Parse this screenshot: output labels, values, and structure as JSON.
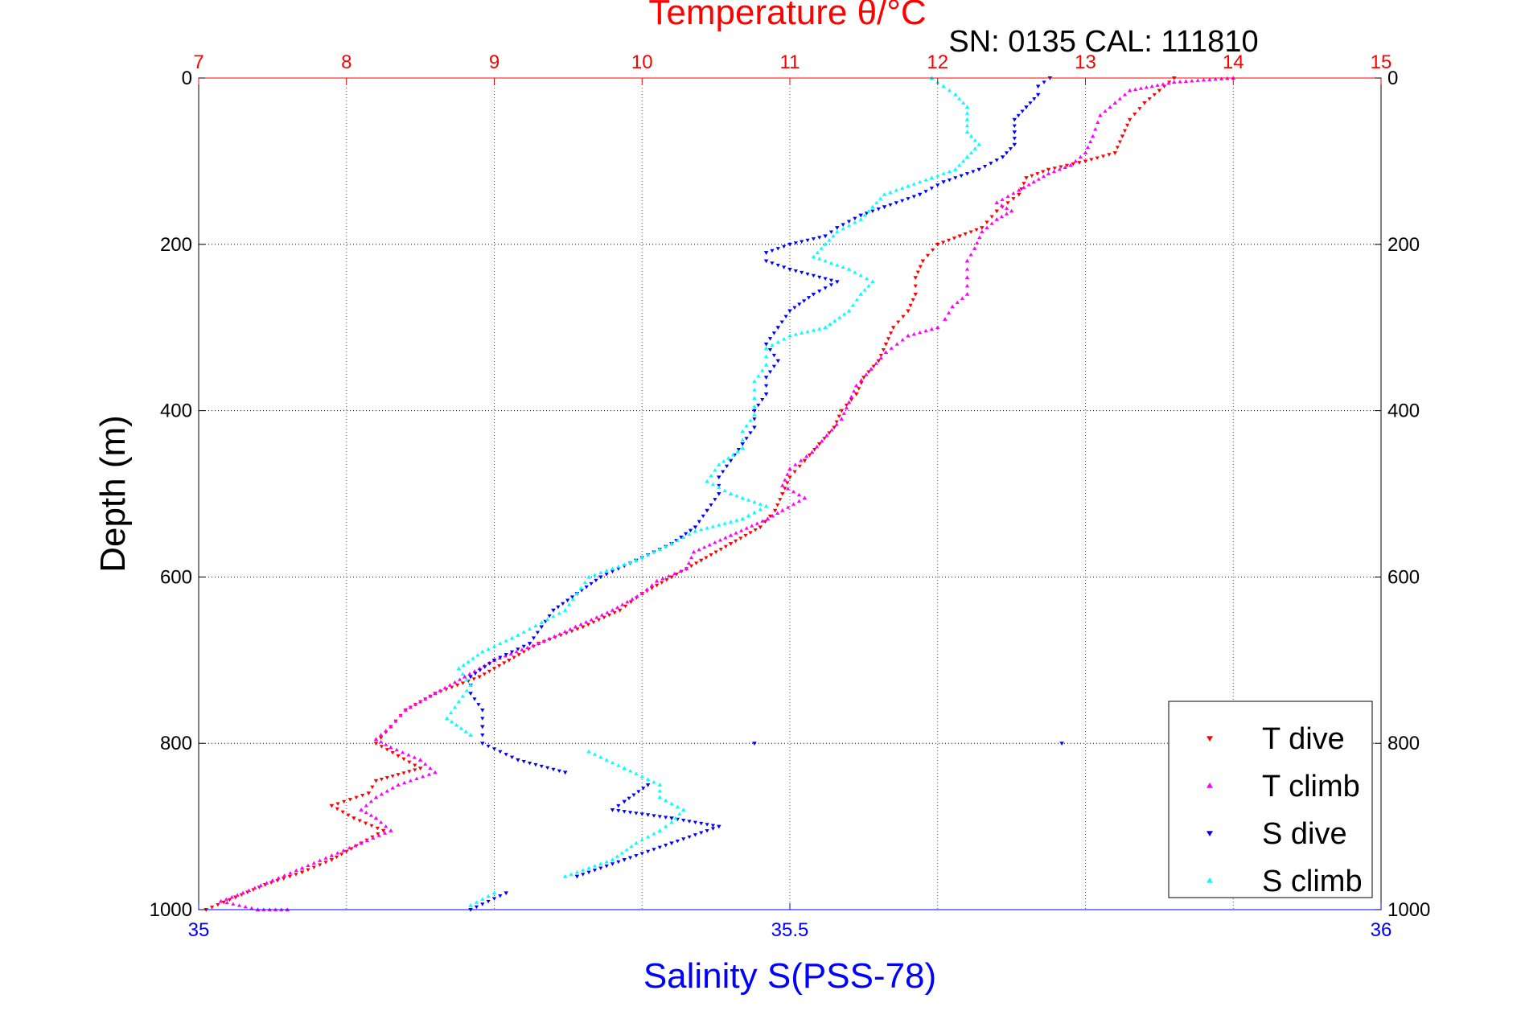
{
  "chart_data": {
    "type": "scatter",
    "title": "Temperature θ/°C",
    "subtitle": "SN: 0135  CAL: 111810",
    "xlabel": "Salinity S(PSS-78)",
    "ylabel": "Depth (m)",
    "top_axis": {
      "label": "Temperature θ/°C",
      "range": [
        7,
        15
      ],
      "ticks": [
        "7",
        "8",
        "9",
        "10",
        "11",
        "12",
        "13",
        "14",
        "15"
      ],
      "color": "#ff0000",
      "grid": true
    },
    "bottom_axis": {
      "label": "Salinity S(PSS-78)",
      "range": [
        35,
        36
      ],
      "ticks": [
        "35",
        "35.5",
        "36"
      ],
      "color": "#0000ff"
    },
    "y_axis": {
      "label": "Depth (m)",
      "range": [
        0,
        1000
      ],
      "reversed": true,
      "ticks": [
        "0",
        "200",
        "400",
        "600",
        "800",
        "1000"
      ],
      "grid": true
    },
    "legend_position": "bottom-right",
    "series": [
      {
        "name": "T dive",
        "axis": "temperature",
        "color": "#ff0000",
        "marker": "triangle-down",
        "points": [
          [
            13.6,
            0
          ],
          [
            13.5,
            15
          ],
          [
            13.4,
            30
          ],
          [
            13.3,
            50
          ],
          [
            13.25,
            70
          ],
          [
            13.2,
            90
          ],
          [
            13.0,
            100
          ],
          [
            12.75,
            110
          ],
          [
            12.6,
            120
          ],
          [
            12.55,
            140
          ],
          [
            12.4,
            160
          ],
          [
            12.3,
            180
          ],
          [
            12.15,
            190
          ],
          [
            12.0,
            200
          ],
          [
            11.9,
            220
          ],
          [
            11.85,
            240
          ],
          [
            11.85,
            260
          ],
          [
            11.8,
            280
          ],
          [
            11.7,
            300
          ],
          [
            11.65,
            320
          ],
          [
            11.6,
            340
          ],
          [
            11.5,
            360
          ],
          [
            11.45,
            380
          ],
          [
            11.35,
            400
          ],
          [
            11.3,
            420
          ],
          [
            11.2,
            440
          ],
          [
            11.1,
            460
          ],
          [
            11.0,
            480
          ],
          [
            10.95,
            500
          ],
          [
            10.9,
            520
          ],
          [
            10.8,
            540
          ],
          [
            10.6,
            560
          ],
          [
            10.4,
            580
          ],
          [
            10.2,
            600
          ],
          [
            10.0,
            620
          ],
          [
            9.85,
            640
          ],
          [
            9.6,
            660
          ],
          [
            9.3,
            680
          ],
          [
            9.1,
            700
          ],
          [
            8.9,
            720
          ],
          [
            8.6,
            740
          ],
          [
            8.4,
            760
          ],
          [
            8.3,
            780
          ],
          [
            8.2,
            800
          ],
          [
            8.35,
            815
          ],
          [
            8.5,
            830
          ],
          [
            8.2,
            845
          ],
          [
            8.15,
            860
          ],
          [
            7.9,
            875
          ],
          [
            8.05,
            890
          ],
          [
            8.25,
            905
          ],
          [
            8.1,
            920
          ],
          [
            7.9,
            940
          ],
          [
            7.7,
            955
          ],
          [
            7.45,
            970
          ],
          [
            7.25,
            985
          ],
          [
            7.05,
            1000
          ]
        ]
      },
      {
        "name": "T climb",
        "axis": "temperature",
        "color": "#ff00ff",
        "marker": "triangle-up",
        "points": [
          [
            14.0,
            0
          ],
          [
            13.6,
            5
          ],
          [
            13.3,
            15
          ],
          [
            13.2,
            30
          ],
          [
            13.1,
            45
          ],
          [
            13.05,
            70
          ],
          [
            13.0,
            90
          ],
          [
            12.9,
            105
          ],
          [
            12.75,
            115
          ],
          [
            12.65,
            125
          ],
          [
            12.55,
            135
          ],
          [
            12.4,
            150
          ],
          [
            12.5,
            160
          ],
          [
            12.4,
            170
          ],
          [
            12.3,
            185
          ],
          [
            12.25,
            205
          ],
          [
            12.2,
            220
          ],
          [
            12.2,
            240
          ],
          [
            12.2,
            260
          ],
          [
            12.1,
            275
          ],
          [
            12.05,
            290
          ],
          [
            12.0,
            300
          ],
          [
            11.8,
            310
          ],
          [
            11.65,
            330
          ],
          [
            11.55,
            350
          ],
          [
            11.45,
            370
          ],
          [
            11.4,
            390
          ],
          [
            11.35,
            410
          ],
          [
            11.25,
            430
          ],
          [
            11.15,
            450
          ],
          [
            11.0,
            470
          ],
          [
            10.95,
            490
          ],
          [
            11.1,
            505
          ],
          [
            10.95,
            520
          ],
          [
            10.85,
            530
          ],
          [
            10.6,
            550
          ],
          [
            10.35,
            570
          ],
          [
            10.3,
            590
          ],
          [
            10.1,
            605
          ],
          [
            10.0,
            620
          ],
          [
            9.8,
            640
          ],
          [
            9.55,
            660
          ],
          [
            9.3,
            680
          ],
          [
            9.0,
            700
          ],
          [
            8.8,
            720
          ],
          [
            8.6,
            740
          ],
          [
            8.4,
            760
          ],
          [
            8.3,
            780
          ],
          [
            8.2,
            795
          ],
          [
            8.3,
            805
          ],
          [
            8.5,
            820
          ],
          [
            8.6,
            835
          ],
          [
            8.35,
            850
          ],
          [
            8.2,
            865
          ],
          [
            8.1,
            880
          ],
          [
            8.2,
            890
          ],
          [
            8.3,
            905
          ],
          [
            8.1,
            920
          ],
          [
            7.9,
            935
          ],
          [
            7.7,
            950
          ],
          [
            7.5,
            965
          ],
          [
            7.3,
            980
          ],
          [
            7.15,
            990
          ],
          [
            7.4,
            1000
          ],
          [
            7.6,
            1000
          ]
        ]
      },
      {
        "name": "S dive",
        "axis": "salinity",
        "color": "#0000ff",
        "marker": "triangle-down",
        "points": [
          [
            35.72,
            0
          ],
          [
            35.71,
            10
          ],
          [
            35.71,
            20
          ],
          [
            35.7,
            35
          ],
          [
            35.69,
            50
          ],
          [
            35.69,
            65
          ],
          [
            35.69,
            80
          ],
          [
            35.68,
            95
          ],
          [
            35.66,
            110
          ],
          [
            35.63,
            125
          ],
          [
            35.61,
            140
          ],
          [
            35.58,
            155
          ],
          [
            35.56,
            165
          ],
          [
            35.54,
            180
          ],
          [
            35.53,
            190
          ],
          [
            35.5,
            200
          ],
          [
            35.48,
            210
          ],
          [
            35.48,
            220
          ],
          [
            35.5,
            230
          ],
          [
            35.54,
            245
          ],
          [
            35.52,
            260
          ],
          [
            35.5,
            280
          ],
          [
            35.49,
            300
          ],
          [
            35.48,
            320
          ],
          [
            35.49,
            340
          ],
          [
            35.48,
            360
          ],
          [
            35.48,
            380
          ],
          [
            35.47,
            400
          ],
          [
            35.47,
            420
          ],
          [
            35.46,
            440
          ],
          [
            35.45,
            460
          ],
          [
            35.44,
            480
          ],
          [
            35.44,
            500
          ],
          [
            35.43,
            520
          ],
          [
            35.42,
            540
          ],
          [
            35.4,
            560
          ],
          [
            35.37,
            580
          ],
          [
            35.34,
            600
          ],
          [
            35.32,
            620
          ],
          [
            35.3,
            640
          ],
          [
            35.29,
            660
          ],
          [
            35.28,
            680
          ],
          [
            35.25,
            700
          ],
          [
            35.23,
            720
          ],
          [
            35.23,
            740
          ],
          [
            35.24,
            760
          ],
          [
            35.24,
            780
          ],
          [
            35.24,
            800
          ],
          [
            35.27,
            820
          ],
          [
            35.31,
            835
          ],
          [
            35.38,
            850
          ],
          [
            35.36,
            870
          ],
          [
            35.35,
            880
          ],
          [
            35.4,
            890
          ],
          [
            35.44,
            900
          ],
          [
            35.4,
            920
          ],
          [
            35.36,
            940
          ],
          [
            35.32,
            960
          ],
          [
            35.26,
            980
          ],
          [
            35.23,
            1000
          ],
          [
            35.47,
            800
          ],
          [
            35.73,
            800
          ]
        ]
      },
      {
        "name": "S climb",
        "axis": "salinity",
        "color": "#00ffff",
        "marker": "triangle-up",
        "points": [
          [
            35.62,
            0
          ],
          [
            35.63,
            10
          ],
          [
            35.64,
            20
          ],
          [
            35.65,
            35
          ],
          [
            35.65,
            50
          ],
          [
            35.65,
            65
          ],
          [
            35.66,
            80
          ],
          [
            35.65,
            95
          ],
          [
            35.64,
            110
          ],
          [
            35.62,
            120
          ],
          [
            35.6,
            130
          ],
          [
            35.58,
            140
          ],
          [
            35.57,
            155
          ],
          [
            35.56,
            170
          ],
          [
            35.54,
            185
          ],
          [
            35.53,
            200
          ],
          [
            35.52,
            215
          ],
          [
            35.55,
            230
          ],
          [
            35.57,
            245
          ],
          [
            35.56,
            260
          ],
          [
            35.55,
            280
          ],
          [
            35.53,
            300
          ],
          [
            35.5,
            310
          ],
          [
            35.48,
            325
          ],
          [
            35.48,
            345
          ],
          [
            35.47,
            365
          ],
          [
            35.47,
            385
          ],
          [
            35.47,
            405
          ],
          [
            35.46,
            425
          ],
          [
            35.46,
            445
          ],
          [
            35.44,
            465
          ],
          [
            35.43,
            485
          ],
          [
            35.45,
            500
          ],
          [
            35.48,
            515
          ],
          [
            35.46,
            530
          ],
          [
            35.42,
            545
          ],
          [
            35.4,
            560
          ],
          [
            35.37,
            580
          ],
          [
            35.33,
            600
          ],
          [
            35.32,
            620
          ],
          [
            35.31,
            640
          ],
          [
            35.29,
            655
          ],
          [
            35.27,
            670
          ],
          [
            35.24,
            690
          ],
          [
            35.22,
            710
          ],
          [
            35.23,
            730
          ],
          [
            35.22,
            750
          ],
          [
            35.21,
            770
          ],
          [
            35.23,
            790
          ],
          [
            35.33,
            810
          ],
          [
            35.36,
            830
          ],
          [
            35.39,
            850
          ],
          [
            35.39,
            865
          ],
          [
            35.41,
            880
          ],
          [
            35.4,
            895
          ],
          [
            35.39,
            905
          ],
          [
            35.37,
            920
          ],
          [
            35.35,
            940
          ],
          [
            35.31,
            960
          ],
          [
            35.25,
            980
          ],
          [
            35.23,
            995
          ]
        ]
      }
    ]
  }
}
